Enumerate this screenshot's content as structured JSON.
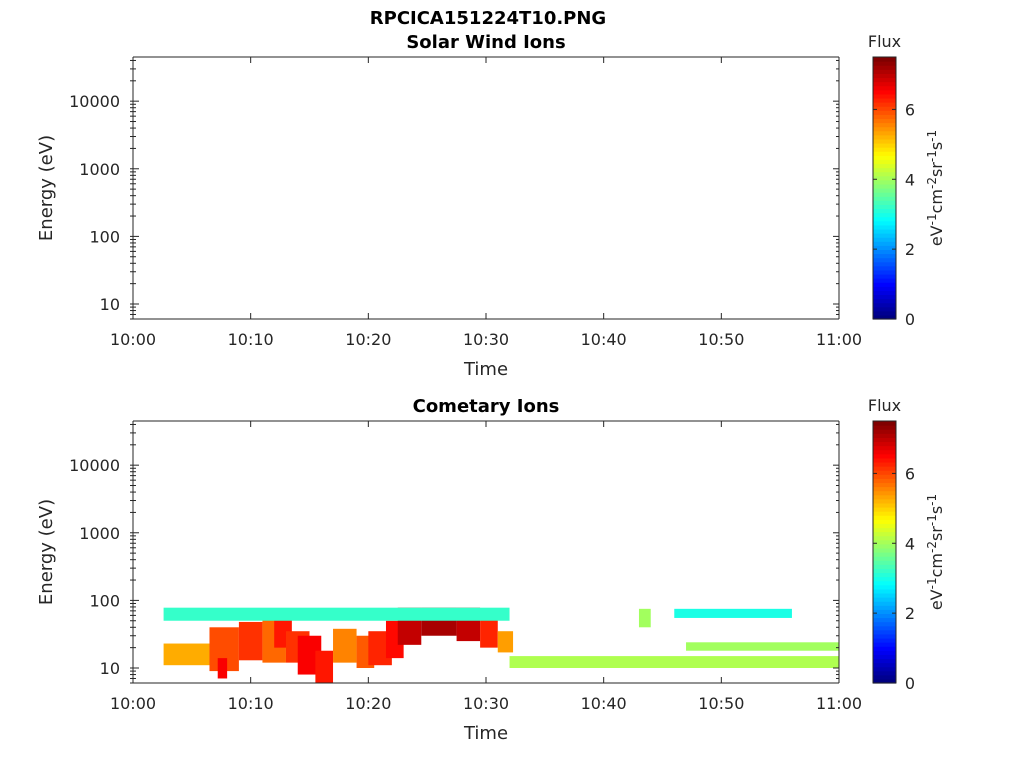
{
  "figure": {
    "title": "RPCICA151224T10.PNG"
  },
  "colorbar": {
    "title": "Flux",
    "unit_parts": [
      {
        "t": "eV",
        "sup": false
      },
      {
        "t": "-1",
        "sup": true
      },
      {
        "t": "cm",
        "sup": false
      },
      {
        "t": "-2",
        "sup": true
      },
      {
        "t": "sr",
        "sup": false
      },
      {
        "t": "-1",
        "sup": true
      },
      {
        "t": "s",
        "sup": false
      },
      {
        "t": "-1",
        "sup": true
      }
    ],
    "range": [
      0,
      7.5
    ],
    "ticks": [
      0,
      2,
      4,
      6
    ],
    "colormap": "jet"
  },
  "chart_data": [
    {
      "type": "heatmap",
      "title": "Solar Wind Ions",
      "xlabel": "Time",
      "ylabel": "Energy (eV)",
      "x_ticks": [
        "10:00",
        "10:10",
        "10:20",
        "10:30",
        "10:40",
        "10:50",
        "11:00"
      ],
      "y_ticks": [
        10,
        100,
        1000,
        10000
      ],
      "y_scale": "log",
      "ylim": [
        6,
        45000
      ],
      "xlim_minutes": [
        0,
        60
      ],
      "cells": []
    },
    {
      "type": "heatmap",
      "title": "Cometary Ions",
      "xlabel": "Time",
      "ylabel": "Energy (eV)",
      "x_ticks": [
        "10:00",
        "10:10",
        "10:20",
        "10:30",
        "10:40",
        "10:50",
        "11:00"
      ],
      "y_ticks": [
        10,
        100,
        1000,
        10000
      ],
      "y_scale": "log",
      "ylim": [
        6,
        45000
      ],
      "xlim_minutes": [
        0,
        60
      ],
      "cells": [
        {
          "t0": 2.6,
          "t1": 6.5,
          "e0": 11,
          "e1": 23,
          "flux": 5.3
        },
        {
          "t0": 6.5,
          "t1": 9.0,
          "e0": 9,
          "e1": 40,
          "flux": 6.0
        },
        {
          "t0": 7.2,
          "t1": 8.0,
          "e0": 7,
          "e1": 14,
          "flux": 6.6
        },
        {
          "t0": 9.0,
          "t1": 11.0,
          "e0": 13,
          "e1": 48,
          "flux": 6.2
        },
        {
          "t0": 11.0,
          "t1": 13.0,
          "e0": 12,
          "e1": 55,
          "flux": 5.8
        },
        {
          "t0": 12.0,
          "t1": 13.5,
          "e0": 20,
          "e1": 65,
          "flux": 6.4
        },
        {
          "t0": 13.0,
          "t1": 15.0,
          "e0": 12,
          "e1": 35,
          "flux": 6.2
        },
        {
          "t0": 14.0,
          "t1": 16.0,
          "e0": 8,
          "e1": 30,
          "flux": 6.6
        },
        {
          "t0": 15.5,
          "t1": 17.0,
          "e0": 6,
          "e1": 18,
          "flux": 6.4
        },
        {
          "t0": 17.0,
          "t1": 19.0,
          "e0": 12,
          "e1": 38,
          "flux": 5.6
        },
        {
          "t0": 19.0,
          "t1": 20.5,
          "e0": 10,
          "e1": 30,
          "flux": 5.9
        },
        {
          "t0": 20.0,
          "t1": 22.0,
          "e0": 11,
          "e1": 35,
          "flux": 6.3
        },
        {
          "t0": 21.5,
          "t1": 23.0,
          "e0": 14,
          "e1": 50,
          "flux": 6.5
        },
        {
          "t0": 22.5,
          "t1": 24.5,
          "e0": 22,
          "e1": 78,
          "flux": 7.0
        },
        {
          "t0": 24.5,
          "t1": 27.5,
          "e0": 30,
          "e1": 78,
          "flux": 7.2
        },
        {
          "t0": 27.5,
          "t1": 29.5,
          "e0": 25,
          "e1": 78,
          "flux": 7.0
        },
        {
          "t0": 29.5,
          "t1": 31.0,
          "e0": 20,
          "e1": 55,
          "flux": 6.3
        },
        {
          "t0": 31.0,
          "t1": 32.3,
          "e0": 17,
          "e1": 35,
          "flux": 5.4
        },
        {
          "t0": 2.6,
          "t1": 32.0,
          "e0": 50,
          "e1": 78,
          "flux": 3.2
        },
        {
          "t0": 32.0,
          "t1": 60.0,
          "e0": 10,
          "e1": 15,
          "flux": 4.1
        },
        {
          "t0": 43.0,
          "t1": 44.0,
          "e0": 40,
          "e1": 75,
          "flux": 4.0
        },
        {
          "t0": 47.0,
          "t1": 60.0,
          "e0": 18,
          "e1": 24,
          "flux": 4.0
        },
        {
          "t0": 46.0,
          "t1": 56.0,
          "e0": 55,
          "e1": 75,
          "flux": 3.0
        }
      ]
    }
  ]
}
